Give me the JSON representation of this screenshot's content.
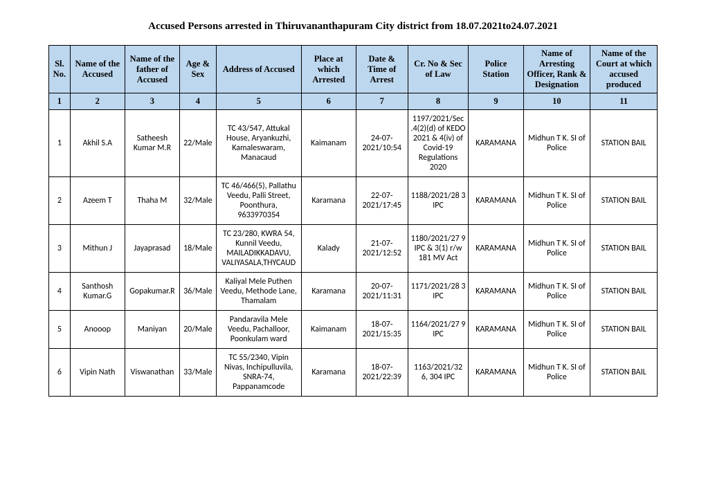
{
  "title": "Accused Persons arrested in   Thiruvananthapuram City   district from   18.07.2021to24.07.2021",
  "columns": [
    "Sl. No.",
    "Name of the Accused",
    "Name of the father of Accused",
    "Age & Sex",
    "Address of Accused",
    "Place at which Arrested",
    "Date & Time of Arrest",
    "Cr. No & Sec of Law",
    "Police Station",
    "Name of Arresting Officer, Rank & Designation",
    "Name of the Court at which accused produced"
  ],
  "colnums": [
    "1",
    "2",
    "3",
    "4",
    "5",
    "6",
    "7",
    "8",
    "9",
    "10",
    "11"
  ],
  "rows": [
    {
      "sl": "1",
      "accused": "Akhil S.A",
      "father": "Satheesh Kumar M.R",
      "agesex": "22/Male",
      "address": "TC 43/547, Attukal House, Aryankuzhi, Kamaleswaram, Manacaud",
      "place": "Kaimanam",
      "datetime": "24-07-2021/10:54",
      "crno": "1197/2021/Sec .4(2)(d) of KEDO 2021 & 4(iv) of Covid-19 Regulations 2020",
      "station": "KARAMANA",
      "officer": "Midhun T K. SI of Police",
      "court": "STATION BAIL"
    },
    {
      "sl": "2",
      "accused": "Azeem T",
      "father": "Thaha M",
      "agesex": "32/Male",
      "address": "TC 46/466(5), Pallathu Veedu, Palli Street, Poonthura, 9633970354",
      "place": "Karamana",
      "datetime": "22-07-2021/17:45",
      "crno": "1188/2021/28 3 IPC",
      "station": "KARAMANA",
      "officer": "Midhun T K. SI of Police",
      "court": "STATION BAIL"
    },
    {
      "sl": "3",
      "accused": "Mithun J",
      "father": "Jayaprasad",
      "agesex": "18/Male",
      "address": "TC 23/280, KWRA 54, Kunnil Veedu, MAILADIKKADAVU, VALIYASALA,THYCAUD",
      "place": "Kalady",
      "datetime": "21-07-2021/12:52",
      "crno": "1180/2021/27 9 IPC & 3(1) r/w 181 MV Act",
      "station": "KARAMANA",
      "officer": "Midhun T K. SI of Police",
      "court": "STATION BAIL"
    },
    {
      "sl": "4",
      "accused": "Santhosh Kumar.G",
      "father": "Gopakumar.R",
      "agesex": "36/Male",
      "address": "Kaliyal Mele Puthen Veedu, Methode Lane, Thamalam",
      "place": "Karamana",
      "datetime": "20-07-2021/11:31",
      "crno": "1171/2021/28 3 IPC",
      "station": "KARAMANA",
      "officer": "Midhun T K. SI of Police",
      "court": "STATION BAIL"
    },
    {
      "sl": "5",
      "accused": "Anooop",
      "father": "Maniyan",
      "agesex": "20/Male",
      "address": "Pandaravila Mele Veedu, Pachalloor, Poonkulam ward",
      "place": "Kaimanam",
      "datetime": "18-07-2021/15:35",
      "crno": "1164/2021/27 9 IPC",
      "station": "KARAMANA",
      "officer": "Midhun T K. SI of Police",
      "court": "STATION BAIL"
    },
    {
      "sl": "6",
      "accused": "Vipin Nath",
      "father": "Viswanathan",
      "agesex": "33/Male",
      "address": "TC 55/2340, Vipin Nivas, Inchipulluvila, SNRA-74, Pappanamcode",
      "place": "Karamana",
      "datetime": "18-07-2021/22:39",
      "crno": "1163/2021/32 6, 304 IPC",
      "station": "KARAMANA",
      "officer": "Midhun T K. SI of Police",
      "court": "STATION BAIL"
    }
  ]
}
